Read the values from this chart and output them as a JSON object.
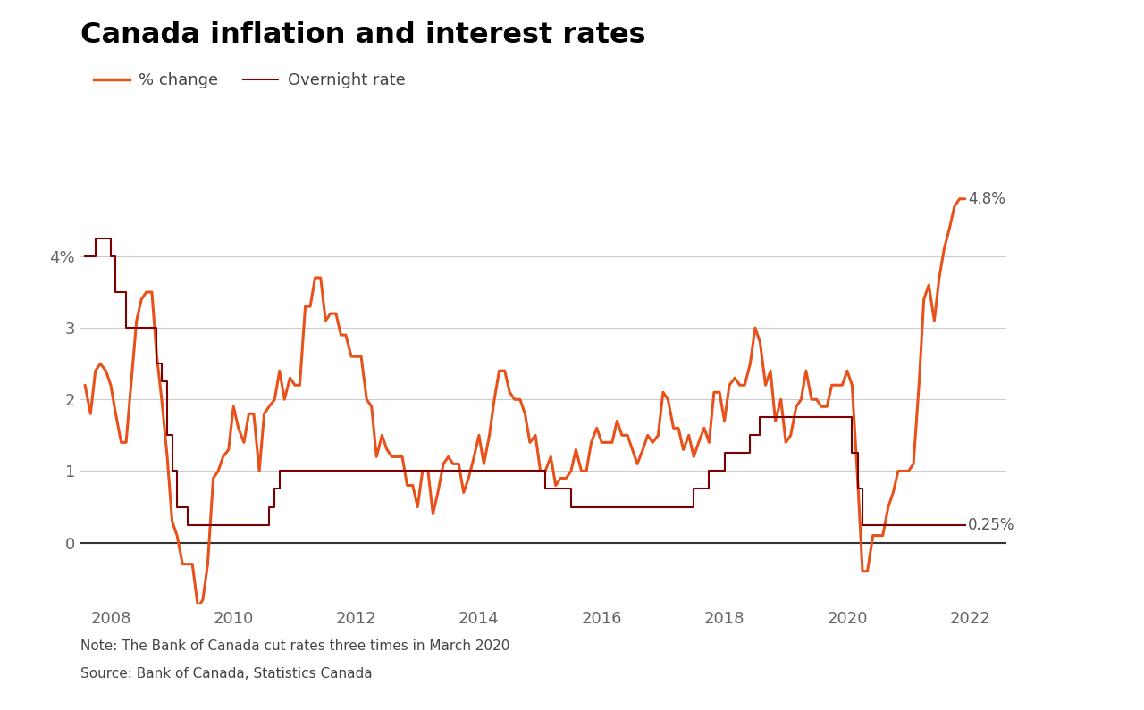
{
  "title": "Canada inflation and interest rates",
  "legend_labels": [
    "% change",
    "Overnight rate"
  ],
  "inflation_color": "#E8521A",
  "overnight_color": "#7B0000",
  "note": "Note: The Bank of Canada cut rates three times in March 2020",
  "source": "Source: Bank of Canada, Statistics Canada",
  "annotation_48": "4.8%",
  "annotation_025": "0.25%",
  "ytick_labels": [
    "4%",
    "3",
    "2",
    "1",
    "0"
  ],
  "ytick_values": [
    4,
    3,
    2,
    1,
    0
  ],
  "xlim_start": 2007.5,
  "xlim_end": 2022.6,
  "ylim_min": -0.85,
  "ylim_max": 5.1,
  "inflation_data": [
    [
      2007.58,
      2.2
    ],
    [
      2007.67,
      1.8
    ],
    [
      2007.75,
      2.4
    ],
    [
      2007.83,
      2.5
    ],
    [
      2007.92,
      2.4
    ],
    [
      2008.0,
      2.2
    ],
    [
      2008.08,
      1.8
    ],
    [
      2008.17,
      1.4
    ],
    [
      2008.25,
      1.4
    ],
    [
      2008.33,
      2.2
    ],
    [
      2008.42,
      3.1
    ],
    [
      2008.5,
      3.4
    ],
    [
      2008.58,
      3.5
    ],
    [
      2008.67,
      3.5
    ],
    [
      2008.75,
      2.6
    ],
    [
      2008.83,
      2.0
    ],
    [
      2008.92,
      1.2
    ],
    [
      2009.0,
      0.3
    ],
    [
      2009.08,
      0.1
    ],
    [
      2009.17,
      -0.3
    ],
    [
      2009.25,
      -0.3
    ],
    [
      2009.33,
      -0.3
    ],
    [
      2009.42,
      -0.9
    ],
    [
      2009.5,
      -0.8
    ],
    [
      2009.58,
      -0.3
    ],
    [
      2009.67,
      0.9
    ],
    [
      2009.75,
      1.0
    ],
    [
      2009.83,
      1.2
    ],
    [
      2009.92,
      1.3
    ],
    [
      2010.0,
      1.9
    ],
    [
      2010.08,
      1.6
    ],
    [
      2010.17,
      1.4
    ],
    [
      2010.25,
      1.8
    ],
    [
      2010.33,
      1.8
    ],
    [
      2010.42,
      1.0
    ],
    [
      2010.5,
      1.8
    ],
    [
      2010.58,
      1.9
    ],
    [
      2010.67,
      2.0
    ],
    [
      2010.75,
      2.4
    ],
    [
      2010.83,
      2.0
    ],
    [
      2010.92,
      2.3
    ],
    [
      2011.0,
      2.2
    ],
    [
      2011.08,
      2.2
    ],
    [
      2011.17,
      3.3
    ],
    [
      2011.25,
      3.3
    ],
    [
      2011.33,
      3.7
    ],
    [
      2011.42,
      3.7
    ],
    [
      2011.5,
      3.1
    ],
    [
      2011.58,
      3.2
    ],
    [
      2011.67,
      3.2
    ],
    [
      2011.75,
      2.9
    ],
    [
      2011.83,
      2.9
    ],
    [
      2011.92,
      2.6
    ],
    [
      2012.0,
      2.6
    ],
    [
      2012.08,
      2.6
    ],
    [
      2012.17,
      2.0
    ],
    [
      2012.25,
      1.9
    ],
    [
      2012.33,
      1.2
    ],
    [
      2012.42,
      1.5
    ],
    [
      2012.5,
      1.3
    ],
    [
      2012.58,
      1.2
    ],
    [
      2012.67,
      1.2
    ],
    [
      2012.75,
      1.2
    ],
    [
      2012.83,
      0.8
    ],
    [
      2012.92,
      0.8
    ],
    [
      2013.0,
      0.5
    ],
    [
      2013.08,
      1.0
    ],
    [
      2013.17,
      1.0
    ],
    [
      2013.25,
      0.4
    ],
    [
      2013.33,
      0.7
    ],
    [
      2013.42,
      1.1
    ],
    [
      2013.5,
      1.2
    ],
    [
      2013.58,
      1.1
    ],
    [
      2013.67,
      1.1
    ],
    [
      2013.75,
      0.7
    ],
    [
      2013.83,
      0.9
    ],
    [
      2013.92,
      1.2
    ],
    [
      2014.0,
      1.5
    ],
    [
      2014.08,
      1.1
    ],
    [
      2014.17,
      1.5
    ],
    [
      2014.25,
      2.0
    ],
    [
      2014.33,
      2.4
    ],
    [
      2014.42,
      2.4
    ],
    [
      2014.5,
      2.1
    ],
    [
      2014.58,
      2.0
    ],
    [
      2014.67,
      2.0
    ],
    [
      2014.75,
      1.8
    ],
    [
      2014.83,
      1.4
    ],
    [
      2014.92,
      1.5
    ],
    [
      2015.0,
      1.0
    ],
    [
      2015.08,
      1.0
    ],
    [
      2015.17,
      1.2
    ],
    [
      2015.25,
      0.8
    ],
    [
      2015.33,
      0.9
    ],
    [
      2015.42,
      0.9
    ],
    [
      2015.5,
      1.0
    ],
    [
      2015.58,
      1.3
    ],
    [
      2015.67,
      1.0
    ],
    [
      2015.75,
      1.0
    ],
    [
      2015.83,
      1.4
    ],
    [
      2015.92,
      1.6
    ],
    [
      2016.0,
      1.4
    ],
    [
      2016.08,
      1.4
    ],
    [
      2016.17,
      1.4
    ],
    [
      2016.25,
      1.7
    ],
    [
      2016.33,
      1.5
    ],
    [
      2016.42,
      1.5
    ],
    [
      2016.5,
      1.3
    ],
    [
      2016.58,
      1.1
    ],
    [
      2016.67,
      1.3
    ],
    [
      2016.75,
      1.5
    ],
    [
      2016.83,
      1.4
    ],
    [
      2016.92,
      1.5
    ],
    [
      2017.0,
      2.1
    ],
    [
      2017.08,
      2.0
    ],
    [
      2017.17,
      1.6
    ],
    [
      2017.25,
      1.6
    ],
    [
      2017.33,
      1.3
    ],
    [
      2017.42,
      1.5
    ],
    [
      2017.5,
      1.2
    ],
    [
      2017.58,
      1.4
    ],
    [
      2017.67,
      1.6
    ],
    [
      2017.75,
      1.4
    ],
    [
      2017.83,
      2.1
    ],
    [
      2017.92,
      2.1
    ],
    [
      2018.0,
      1.7
    ],
    [
      2018.08,
      2.2
    ],
    [
      2018.17,
      2.3
    ],
    [
      2018.25,
      2.2
    ],
    [
      2018.33,
      2.2
    ],
    [
      2018.42,
      2.5
    ],
    [
      2018.5,
      3.0
    ],
    [
      2018.58,
      2.8
    ],
    [
      2018.67,
      2.2
    ],
    [
      2018.75,
      2.4
    ],
    [
      2018.83,
      1.7
    ],
    [
      2018.92,
      2.0
    ],
    [
      2019.0,
      1.4
    ],
    [
      2019.08,
      1.5
    ],
    [
      2019.17,
      1.9
    ],
    [
      2019.25,
      2.0
    ],
    [
      2019.33,
      2.4
    ],
    [
      2019.42,
      2.0
    ],
    [
      2019.5,
      2.0
    ],
    [
      2019.58,
      1.9
    ],
    [
      2019.67,
      1.9
    ],
    [
      2019.75,
      2.2
    ],
    [
      2019.83,
      2.2
    ],
    [
      2019.92,
      2.2
    ],
    [
      2020.0,
      2.4
    ],
    [
      2020.08,
      2.2
    ],
    [
      2020.17,
      0.9
    ],
    [
      2020.25,
      -0.4
    ],
    [
      2020.33,
      -0.4
    ],
    [
      2020.42,
      0.1
    ],
    [
      2020.5,
      0.1
    ],
    [
      2020.58,
      0.1
    ],
    [
      2020.67,
      0.5
    ],
    [
      2020.75,
      0.7
    ],
    [
      2020.83,
      1.0
    ],
    [
      2020.92,
      1.0
    ],
    [
      2021.0,
      1.0
    ],
    [
      2021.08,
      1.1
    ],
    [
      2021.17,
      2.2
    ],
    [
      2021.25,
      3.4
    ],
    [
      2021.33,
      3.6
    ],
    [
      2021.42,
      3.1
    ],
    [
      2021.5,
      3.7
    ],
    [
      2021.58,
      4.1
    ],
    [
      2021.67,
      4.4
    ],
    [
      2021.75,
      4.7
    ],
    [
      2021.83,
      4.8
    ],
    [
      2021.92,
      4.8
    ]
  ],
  "overnight_data": [
    [
      2007.58,
      4.0
    ],
    [
      2007.75,
      4.25
    ],
    [
      2007.92,
      4.25
    ],
    [
      2008.0,
      4.0
    ],
    [
      2008.08,
      3.5
    ],
    [
      2008.25,
      3.0
    ],
    [
      2008.5,
      3.0
    ],
    [
      2008.75,
      2.5
    ],
    [
      2008.83,
      2.25
    ],
    [
      2008.92,
      1.5
    ],
    [
      2009.0,
      1.0
    ],
    [
      2009.08,
      0.5
    ],
    [
      2009.25,
      0.25
    ],
    [
      2010.5,
      0.25
    ],
    [
      2010.58,
      0.5
    ],
    [
      2010.67,
      0.75
    ],
    [
      2010.75,
      1.0
    ],
    [
      2010.83,
      1.0
    ],
    [
      2010.92,
      1.0
    ],
    [
      2011.0,
      1.0
    ],
    [
      2011.5,
      1.0
    ],
    [
      2011.92,
      1.0
    ],
    [
      2012.0,
      1.0
    ],
    [
      2012.92,
      1.0
    ],
    [
      2013.0,
      1.0
    ],
    [
      2013.92,
      1.0
    ],
    [
      2014.0,
      1.0
    ],
    [
      2014.92,
      1.0
    ],
    [
      2015.0,
      1.0
    ],
    [
      2015.08,
      0.75
    ],
    [
      2015.42,
      0.75
    ],
    [
      2015.5,
      0.5
    ],
    [
      2015.92,
      0.5
    ],
    [
      2016.0,
      0.5
    ],
    [
      2016.92,
      0.5
    ],
    [
      2017.0,
      0.5
    ],
    [
      2017.42,
      0.5
    ],
    [
      2017.5,
      0.75
    ],
    [
      2017.67,
      0.75
    ],
    [
      2017.75,
      1.0
    ],
    [
      2017.92,
      1.0
    ],
    [
      2018.0,
      1.25
    ],
    [
      2018.33,
      1.25
    ],
    [
      2018.42,
      1.5
    ],
    [
      2018.5,
      1.5
    ],
    [
      2018.58,
      1.75
    ],
    [
      2018.92,
      1.75
    ],
    [
      2019.0,
      1.75
    ],
    [
      2019.92,
      1.75
    ],
    [
      2020.0,
      1.75
    ],
    [
      2020.08,
      1.25
    ],
    [
      2020.17,
      0.75
    ],
    [
      2020.25,
      0.25
    ],
    [
      2021.92,
      0.25
    ]
  ]
}
